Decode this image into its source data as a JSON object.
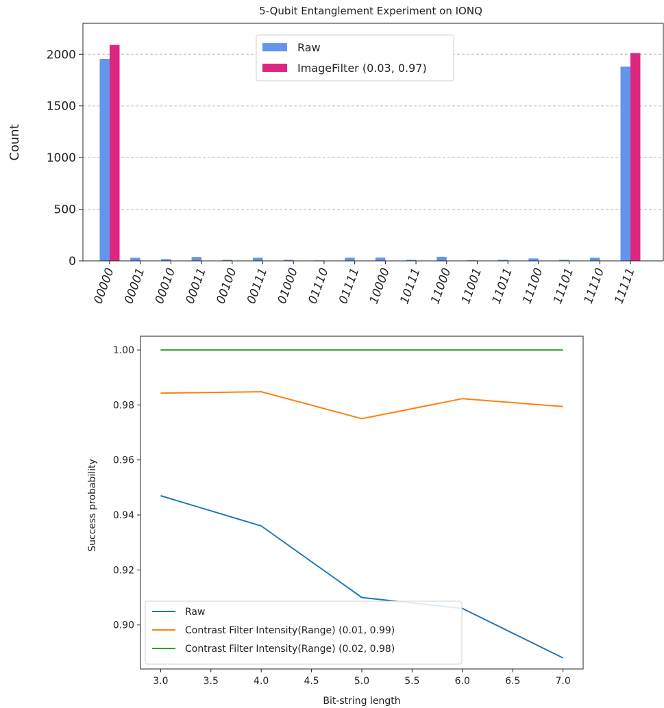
{
  "chart_data": [
    {
      "type": "bar",
      "title": "5-Qubit Entanglement Experiment on IONQ",
      "xlabel": "",
      "ylabel": "Count",
      "ylim": [
        0,
        2300
      ],
      "yticks": [
        0,
        500,
        1000,
        1500,
        2000
      ],
      "grid": "horizontal dashed",
      "legend_placement": "top-center",
      "categories": [
        "00000",
        "00001",
        "00010",
        "00011",
        "00100",
        "00111",
        "01000",
        "01110",
        "01111",
        "10000",
        "10111",
        "11000",
        "11001",
        "11011",
        "11100",
        "11101",
        "11110",
        "11111"
      ],
      "series": [
        {
          "name": "Raw",
          "color": "#6495ed",
          "values": [
            1955,
            30,
            18,
            38,
            10,
            30,
            10,
            5,
            30,
            32,
            10,
            40,
            6,
            10,
            24,
            10,
            30,
            1880
          ]
        },
        {
          "name": "ImageFilter (0.03, 0.97)",
          "color": "#dc267f",
          "values": [
            2090,
            0,
            0,
            0,
            0,
            0,
            0,
            0,
            0,
            0,
            0,
            0,
            0,
            0,
            0,
            0,
            0,
            2012
          ]
        }
      ]
    },
    {
      "type": "line",
      "title": "",
      "xlabel": "Bit-string length",
      "ylabel": "Success probability",
      "xlim": [
        2.8,
        7.2
      ],
      "ylim": [
        0.884,
        1.005
      ],
      "xticks": [
        3.0,
        3.5,
        4.0,
        4.5,
        5.0,
        5.5,
        6.0,
        6.5,
        7.0
      ],
      "xtick_labels": [
        "3.0",
        "3.5",
        "4.0",
        "4.5",
        "5.0",
        "5.5",
        "6.0",
        "6.5",
        "7.0"
      ],
      "yticks": [
        0.9,
        0.92,
        0.94,
        0.96,
        0.98,
        1.0
      ],
      "ytick_labels": [
        "0.90",
        "0.92",
        "0.94",
        "0.96",
        "0.98",
        "1.00"
      ],
      "grid": "off",
      "legend_placement": "lower-left",
      "x": [
        3,
        4,
        5,
        6,
        7
      ],
      "series": [
        {
          "name": "Raw",
          "color": "#1f77b4",
          "values": [
            0.947,
            0.936,
            0.91,
            0.906,
            0.888
          ]
        },
        {
          "name": "Contrast Filter Intensity(Range) (0.01, 0.99)",
          "color": "#ff7f0e",
          "values": [
            0.9843,
            0.9848,
            0.975,
            0.9823,
            0.9794
          ]
        },
        {
          "name": "Contrast Filter Intensity(Range) (0.02, 0.98)",
          "color": "#2ca02c",
          "values": [
            1.0,
            1.0,
            1.0,
            1.0,
            1.0
          ]
        }
      ]
    }
  ]
}
